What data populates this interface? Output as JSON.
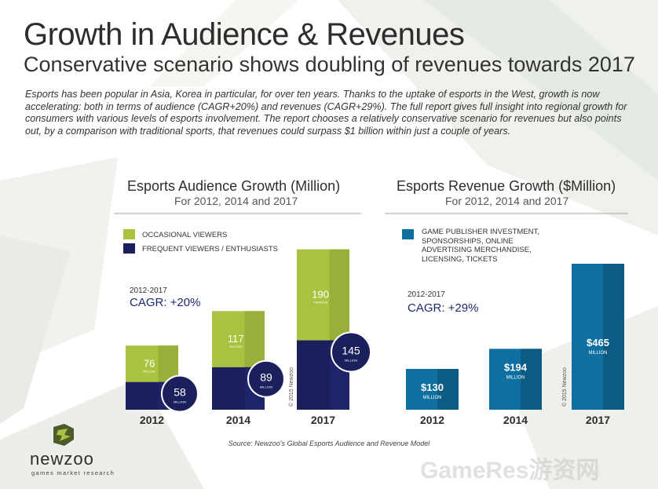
{
  "header": {
    "title": "Growth in Audience & Revenues",
    "subtitle": "Conservative scenario shows doubling of revenues towards 2017"
  },
  "intro_text": "Esports has been popular in Asia, Korea in particular, for over ten years. Thanks to the uptake of esports in the West, growth is now accelerating: both in terms of audience (CAGR+20%) and revenues (CAGR+29%). The full report gives full insight into regional growth for consumers with various levels of esports involvement. The report chooses a relatively conservative scenario for revenues but also points out, by a comparison with traditional sports, that revenues could surpass $1 billion within just a couple of years.",
  "audience_chart": {
    "cagr_period": "2012-2017",
    "cagr": "CAGR: +20%",
    "copyright": "© 2015 Newzoo",
    "unit_label": "MILLION",
    "occasional_unit_label": "VIEWERS",
    "legend": [
      "OCCASIONAL VIEWERS",
      "FREQUENT VIEWERS / ENTHUSIASTS"
    ]
  },
  "revenue_chart": {
    "cagr_period": "2012-2017",
    "cagr": "CAGR: +29%",
    "copyright": "© 2015 Newzoo",
    "unit_label": "MILLION",
    "legend": [
      "GAME PUBLISHER INVESTMENT,",
      "SPONSORSHIPS, ONLINE",
      "ADVERTISING MERCHANDISE,",
      "LICENSING, TICKETS"
    ]
  },
  "chart_data": [
    {
      "type": "bar",
      "title": "Esports Audience Growth (Million)",
      "subtitle": "For 2012, 2014 and 2017",
      "categories": [
        "2012",
        "2014",
        "2017"
      ],
      "series": [
        {
          "name": "OCCASIONAL VIEWERS",
          "values": [
            76,
            117,
            190
          ],
          "labels": [
            "76",
            "117",
            "190"
          ]
        },
        {
          "name": "FREQUENT VIEWERS / ENTHUSIASTS",
          "values": [
            58,
            89,
            145
          ],
          "labels": [
            "58",
            "89",
            "145"
          ]
        }
      ],
      "stacked": true,
      "colors": [
        "#a9c23f",
        "#1b1f5c"
      ]
    },
    {
      "type": "bar",
      "title": "Esports Revenue Growth ($Million)",
      "subtitle": "For 2012, 2014 and 2017",
      "categories": [
        "2012",
        "2014",
        "2017"
      ],
      "series": [
        {
          "name": "GAME PUBLISHER INVESTMENT, SPONSORSHIPS, ONLINE ADVERTISING MERCHANDISE, LICENSING, TICKETS",
          "values": [
            130,
            194,
            465
          ],
          "labels": [
            "$130",
            "$194",
            "$465"
          ]
        }
      ],
      "colors": [
        "#0f6fa0"
      ]
    }
  ],
  "source": "Source: Newzoo's Global Esports Audience and Revenue Model",
  "logo": {
    "name": "newzoo",
    "tagline": "games market research"
  },
  "watermark": "GameRes游资网"
}
